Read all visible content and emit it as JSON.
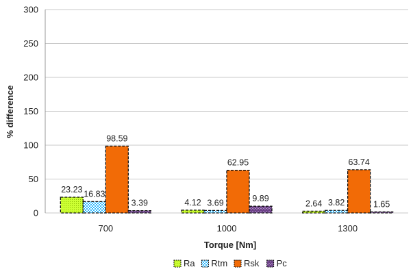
{
  "chart_data": {
    "type": "bar",
    "title": "",
    "xlabel": "Torque [Nm]",
    "ylabel": "% difference",
    "categories": [
      "700",
      "1000",
      "1300"
    ],
    "ylim": [
      0,
      300
    ],
    "yticks": [
      0,
      50,
      100,
      150,
      200,
      250,
      300
    ],
    "grid": true,
    "legend_position": "bottom",
    "series": [
      {
        "name": "Ra",
        "values": [
          23.23,
          4.12,
          2.64
        ],
        "color": "#ccff33",
        "pattern": "dots"
      },
      {
        "name": "Rtm",
        "values": [
          16.83,
          3.69,
          3.82
        ],
        "color": "#33bbff",
        "pattern": "checker"
      },
      {
        "name": "Rsk",
        "values": [
          98.59,
          62.95,
          63.74
        ],
        "color": "#f26b06",
        "pattern": "solid"
      },
      {
        "name": "Pc",
        "values": [
          3.39,
          9.89,
          1.65
        ],
        "color": "#6b3f86",
        "pattern": "weave"
      }
    ]
  }
}
